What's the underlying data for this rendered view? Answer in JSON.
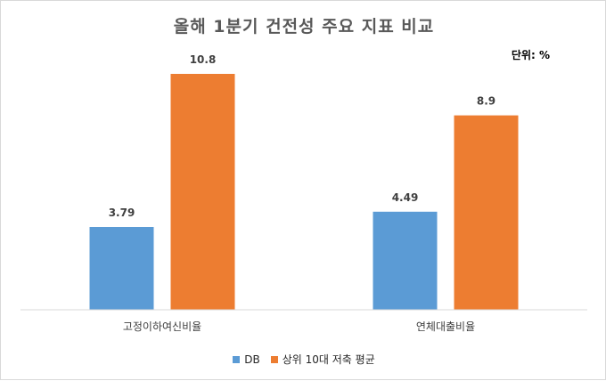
{
  "chart_data": {
    "type": "bar",
    "title": "올해 1분기 건전성 주요 지표 비교",
    "unit_note": "단위: %",
    "categories": [
      "고정이하여신비율",
      "연체대출비율"
    ],
    "series": [
      {
        "name": "DB",
        "values": [
          3.79,
          4.49
        ],
        "color": "#5b9bd5"
      },
      {
        "name": "상위 10대 저축 평균",
        "values": [
          10.8,
          8.9
        ],
        "color": "#ed7d31"
      }
    ],
    "ylim": [
      0,
      11.9
    ],
    "grid": false,
    "legend_position": "bottom"
  }
}
